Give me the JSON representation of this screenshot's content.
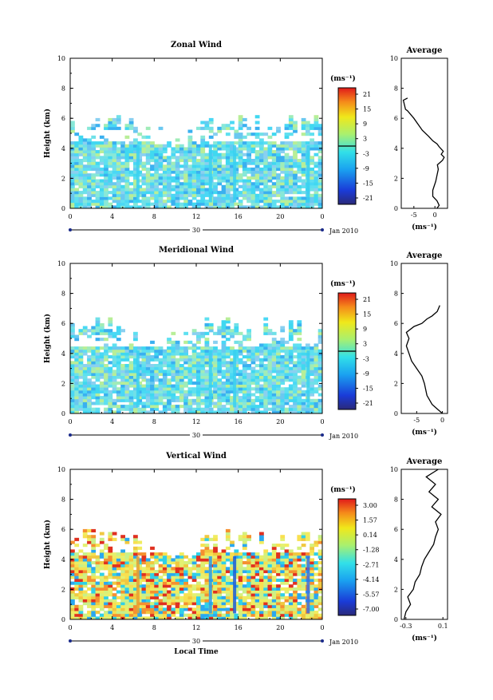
{
  "panels": [
    {
      "title": "Zonal Wind",
      "ylabel": "Height (km)",
      "yticks": [
        "0",
        "2",
        "4",
        "6",
        "8",
        "10"
      ],
      "xticks": [
        "0",
        "4",
        "8",
        "12",
        "16",
        "20",
        "0"
      ],
      "day_label": "30",
      "date_label": "Jan 2010",
      "unit_label": "(ms⁻¹)",
      "colorbar_ticks": [
        "21",
        "15",
        "9",
        "3",
        "-3",
        "-9",
        "-15",
        "-21"
      ],
      "avg_title": "Average",
      "avg_xticks": [
        "-5",
        "0"
      ],
      "avg_xlabel": "(ms⁻¹)",
      "avg_yticks": [
        "0",
        "2",
        "4",
        "6",
        "8",
        "10"
      ]
    },
    {
      "title": "Meridional Wind",
      "ylabel": "Height (km)",
      "yticks": [
        "0",
        "2",
        "4",
        "6",
        "8",
        "10"
      ],
      "xticks": [
        "0",
        "4",
        "8",
        "12",
        "16",
        "20",
        "0"
      ],
      "day_label": "30",
      "date_label": "Jan 2010",
      "unit_label": "(ms⁻¹)",
      "colorbar_ticks": [
        "21",
        "15",
        "9",
        "3",
        "-3",
        "-9",
        "-15",
        "-21"
      ],
      "avg_title": "Average",
      "avg_xticks": [
        "-5",
        "0"
      ],
      "avg_xlabel": "(ms⁻¹)",
      "avg_yticks": [
        "0",
        "2",
        "4",
        "6",
        "8",
        "10"
      ]
    },
    {
      "title": "Vertical Wind",
      "ylabel": "Height (km)",
      "yticks": [
        "0",
        "2",
        "4",
        "6",
        "8",
        "10"
      ],
      "xticks": [
        "0",
        "4",
        "8",
        "12",
        "16",
        "20",
        "0"
      ],
      "day_label": "30",
      "date_label": "Jan 2010",
      "unit_label": "(ms⁻¹)",
      "colorbar_ticks": [
        "3.00",
        "1.57",
        "0.14",
        "-1.28",
        "-2.71",
        "-4.14",
        "-5.57",
        "-7.00"
      ],
      "avg_title": "Average",
      "avg_xticks": [
        "-0.3",
        "0.1"
      ],
      "avg_xlabel": "(ms⁻¹)",
      "avg_yticks": [
        "0",
        "2",
        "4",
        "6",
        "8",
        "10"
      ],
      "xlabel": "Local Time"
    }
  ],
  "chart_data": [
    {
      "type": "heatmap",
      "title": "Zonal Wind",
      "xlabel": "",
      "ylabel": "Height (km)",
      "x_unit": "local time (h)",
      "xlim": [
        0,
        24
      ],
      "ylim": [
        0,
        10
      ],
      "colorbar": {
        "unit": "ms-1",
        "range": [
          -21,
          21
        ],
        "ticks": [
          21,
          15,
          9,
          3,
          -3,
          -9,
          -15,
          -21
        ],
        "zero_contour": true
      },
      "data_top_km": 6.2,
      "average_profile": {
        "title": "Average",
        "xlim": [
          -8,
          3
        ],
        "points": [
          [
            0.5,
            0
          ],
          [
            1.0,
            0.2
          ],
          [
            0.5,
            0.5
          ],
          [
            -0.5,
            0.8
          ],
          [
            -0.5,
            1.2
          ],
          [
            0.2,
            1.8
          ],
          [
            0.5,
            2.2
          ],
          [
            0.8,
            2.6
          ],
          [
            0.6,
            2.9
          ],
          [
            1.8,
            3.2
          ],
          [
            2.2,
            3.4
          ],
          [
            1.5,
            3.6
          ],
          [
            2.0,
            3.8
          ],
          [
            1.0,
            4.1
          ],
          [
            0.5,
            4.3
          ],
          [
            -0.5,
            4.5
          ],
          [
            -1.5,
            4.8
          ],
          [
            -3.0,
            5.2
          ],
          [
            -4.0,
            5.6
          ],
          [
            -5.0,
            6.0
          ],
          [
            -6.5,
            6.5
          ],
          [
            -7.0,
            6.6
          ],
          [
            -7.5,
            7.2
          ],
          [
            -6.5,
            7.35
          ]
        ]
      }
    },
    {
      "type": "heatmap",
      "title": "Meridional Wind",
      "xlabel": "",
      "ylabel": "Height (km)",
      "x_unit": "local time (h)",
      "xlim": [
        0,
        24
      ],
      "ylim": [
        0,
        10
      ],
      "colorbar": {
        "unit": "ms-1",
        "range": [
          -21,
          21
        ],
        "ticks": [
          21,
          15,
          9,
          3,
          -3,
          -9,
          -15,
          -21
        ],
        "zero_contour": true
      },
      "data_top_km": 6.4,
      "average_profile": {
        "title": "Average",
        "xlim": [
          -8,
          1
        ],
        "points": [
          [
            0,
            0
          ],
          [
            -1,
            0.3
          ],
          [
            -2,
            0.6
          ],
          [
            -3,
            1.2
          ],
          [
            -3.5,
            2.0
          ],
          [
            -4,
            2.5
          ],
          [
            -5,
            3.0
          ],
          [
            -6,
            3.5
          ],
          [
            -6.5,
            4.0
          ],
          [
            -7,
            4.5
          ],
          [
            -6.5,
            5.0
          ],
          [
            -7,
            5.4
          ],
          [
            -5.5,
            5.8
          ],
          [
            -4,
            6.0
          ],
          [
            -3,
            6.3
          ],
          [
            -2,
            6.5
          ],
          [
            -1,
            6.8
          ],
          [
            -0.5,
            7.2
          ]
        ]
      }
    },
    {
      "type": "heatmap",
      "title": "Vertical Wind",
      "xlabel": "Local Time",
      "ylabel": "Height (km)",
      "x_unit": "local time (h)",
      "xlim": [
        0,
        24
      ],
      "ylim": [
        0,
        10
      ],
      "colorbar": {
        "unit": "ms-1",
        "range": [
          -7,
          3
        ],
        "ticks": [
          3.0,
          1.57,
          0.14,
          -1.28,
          -2.71,
          -4.14,
          -5.57,
          -7.0
        ]
      },
      "data_top_km": 6.0,
      "average_profile": {
        "title": "Average",
        "xlim": [
          -0.35,
          0.15
        ],
        "points": [
          [
            -0.32,
            0
          ],
          [
            -0.3,
            0.5
          ],
          [
            -0.25,
            1.0
          ],
          [
            -0.28,
            1.5
          ],
          [
            -0.22,
            2.0
          ],
          [
            -0.2,
            2.5
          ],
          [
            -0.15,
            3.0
          ],
          [
            -0.13,
            3.5
          ],
          [
            -0.1,
            4.0
          ],
          [
            -0.05,
            4.5
          ],
          [
            0.0,
            5.0
          ],
          [
            0.02,
            5.5
          ],
          [
            0.05,
            6.0
          ],
          [
            0.02,
            6.5
          ],
          [
            0.08,
            7.0
          ],
          [
            -0.02,
            7.5
          ],
          [
            0.05,
            8.0
          ],
          [
            -0.05,
            8.5
          ],
          [
            0.02,
            9.0
          ],
          [
            -0.08,
            9.5
          ],
          [
            0.05,
            10.0
          ]
        ]
      }
    }
  ]
}
